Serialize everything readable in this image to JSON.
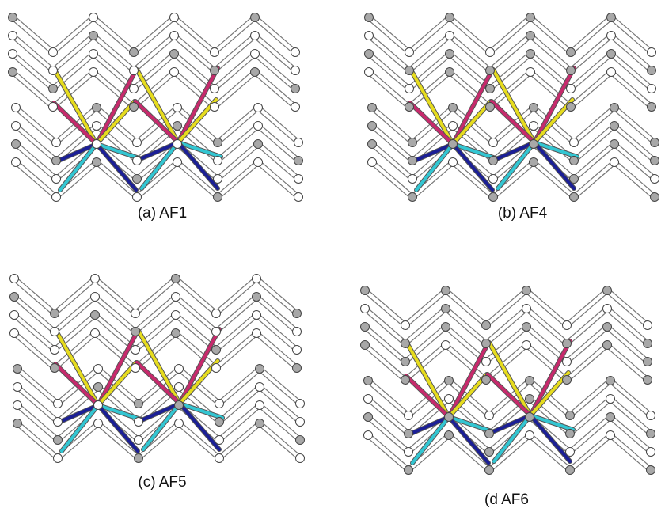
{
  "panels": [
    {
      "caption": "(a) AF1"
    },
    {
      "caption": "(b) AF4"
    },
    {
      "caption": "(c) AF5"
    },
    {
      "caption": "(d AF6"
    }
  ]
}
